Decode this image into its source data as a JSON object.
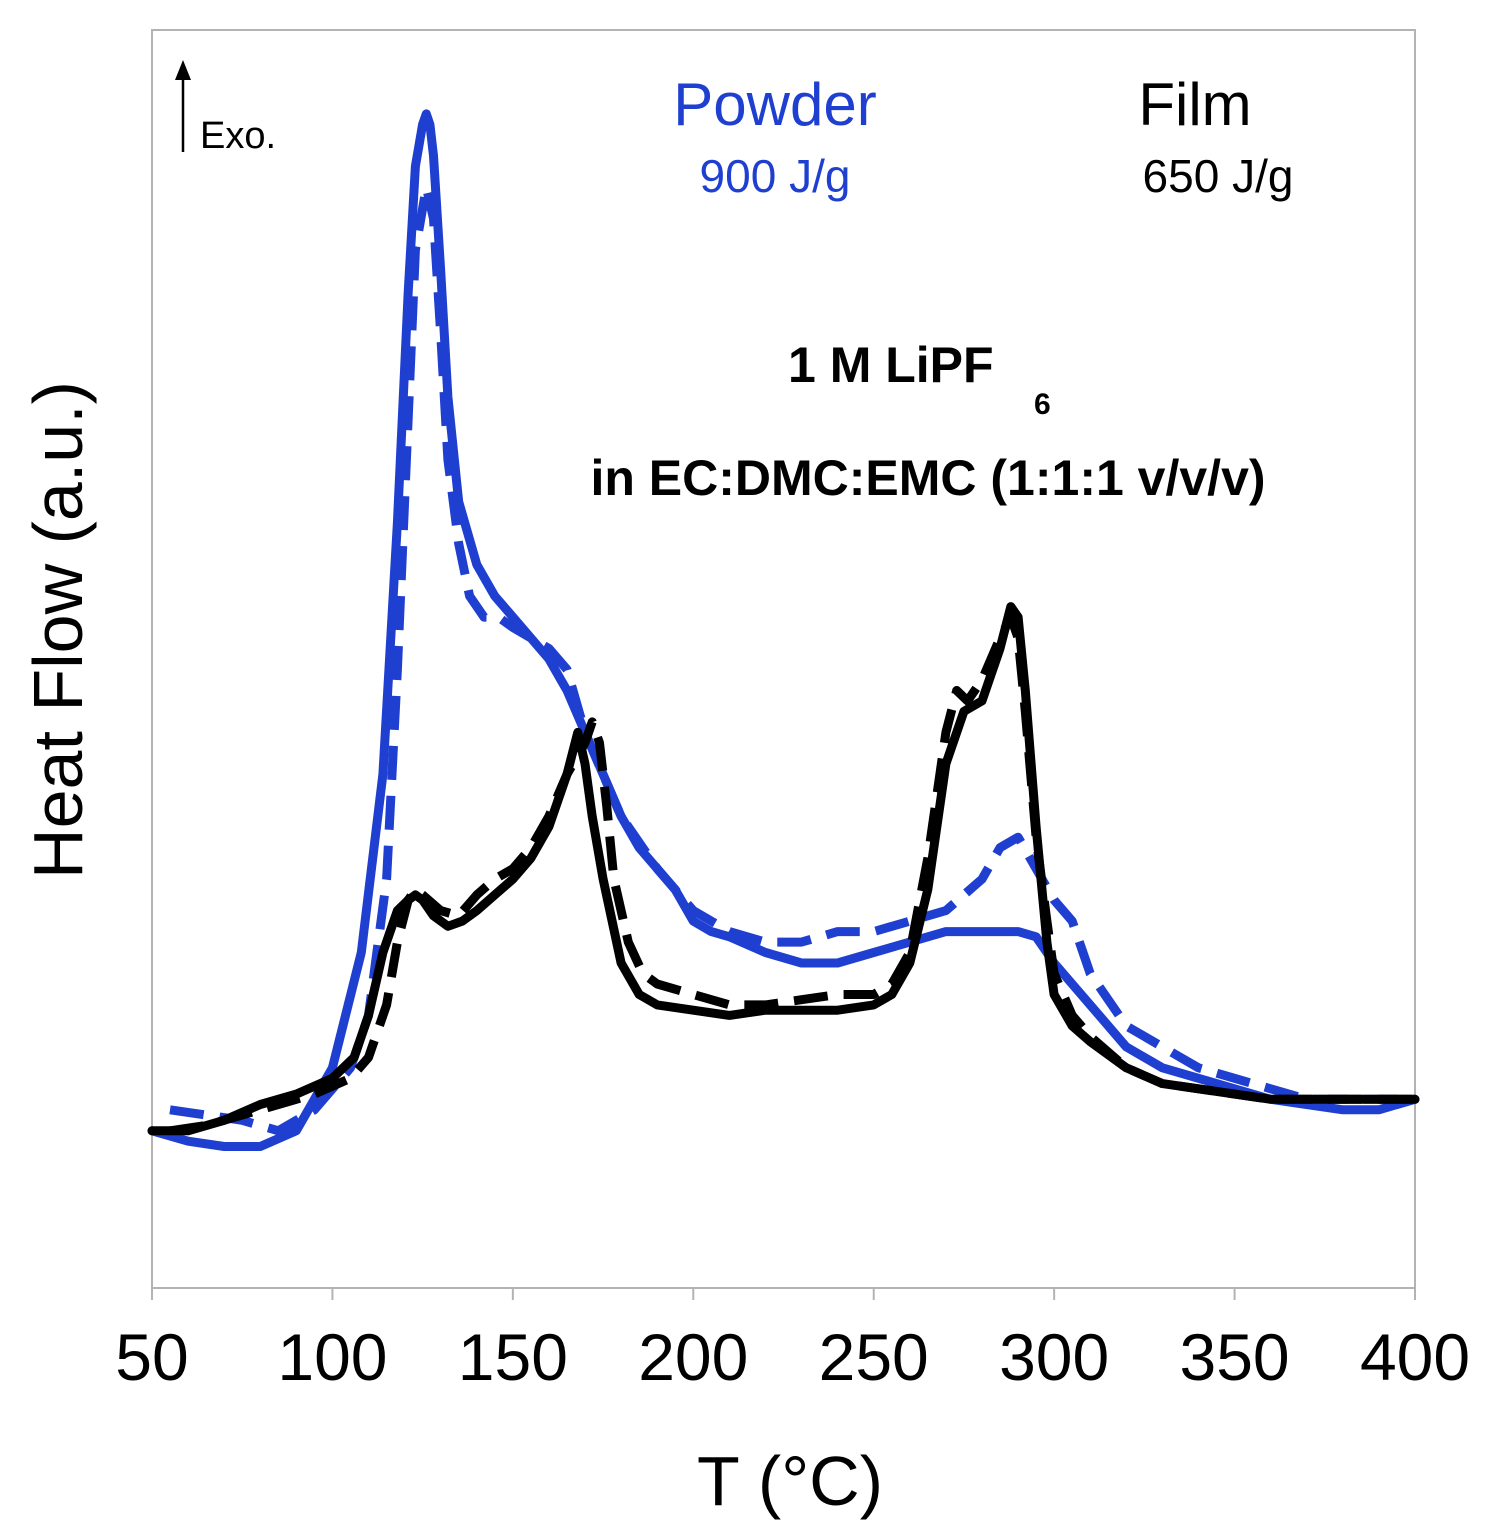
{
  "chart_data": {
    "type": "line",
    "title": "",
    "xlabel": "T (°C)",
    "ylabel": "Heat Flow (a.u.)",
    "xlim": [
      50,
      400
    ],
    "ylim": [
      -0.15,
      1.05
    ],
    "xticks": [
      "50",
      "100",
      "150",
      "200",
      "250",
      "300",
      "350",
      "400"
    ],
    "exo_label": "Exo.",
    "annotations": {
      "powder_title": "Powder",
      "powder_value": "900 J/g",
      "film_title": "Film",
      "film_value": "650 J/g",
      "electrolyte_main": "1 M LiPF",
      "electrolyte_sub": "6",
      "solvent": "in EC:DMC:EMC (1:1:1 v/v/v)"
    },
    "colors": {
      "powder": "#1f3fd1",
      "film": "#000000"
    },
    "series": [
      {
        "name": "Powder (solid)",
        "color": "#1f3fd1",
        "style": "solid",
        "x": [
          50,
          60,
          70,
          80,
          90,
          100,
          108,
          114,
          118,
          121,
          123,
          125,
          126,
          127,
          128,
          130,
          132,
          135,
          140,
          145,
          150,
          155,
          160,
          165,
          170,
          175,
          180,
          185,
          190,
          195,
          200,
          205,
          210,
          220,
          230,
          240,
          250,
          260,
          270,
          280,
          285,
          290,
          295,
          300,
          310,
          320,
          330,
          340,
          350,
          360,
          370,
          380,
          390,
          400
        ],
        "y": [
          0.0,
          -0.01,
          -0.015,
          -0.015,
          0.0,
          0.06,
          0.17,
          0.34,
          0.58,
          0.8,
          0.92,
          0.96,
          0.97,
          0.96,
          0.93,
          0.82,
          0.7,
          0.6,
          0.54,
          0.51,
          0.49,
          0.47,
          0.45,
          0.42,
          0.38,
          0.34,
          0.3,
          0.27,
          0.25,
          0.23,
          0.2,
          0.19,
          0.185,
          0.17,
          0.16,
          0.16,
          0.17,
          0.18,
          0.19,
          0.19,
          0.19,
          0.19,
          0.185,
          0.16,
          0.12,
          0.08,
          0.06,
          0.05,
          0.04,
          0.03,
          0.025,
          0.02,
          0.02,
          0.03
        ]
      },
      {
        "name": "Powder (dashed)",
        "color": "#1f3fd1",
        "style": "dashed",
        "x": [
          55,
          65,
          75,
          85,
          95,
          105,
          110,
          115,
          118,
          121,
          123,
          126,
          128,
          130,
          132,
          135,
          138,
          142,
          146,
          150,
          155,
          160,
          165,
          170,
          180,
          190,
          200,
          210,
          220,
          230,
          240,
          250,
          260,
          270,
          280,
          285,
          290,
          295,
          300,
          305,
          310,
          320,
          330,
          340,
          350,
          360,
          370,
          380,
          390,
          400
        ],
        "y": [
          0.02,
          0.015,
          0.01,
          0.0,
          0.02,
          0.06,
          0.11,
          0.24,
          0.44,
          0.68,
          0.84,
          0.9,
          0.87,
          0.76,
          0.64,
          0.56,
          0.51,
          0.49,
          0.49,
          0.48,
          0.47,
          0.46,
          0.44,
          0.38,
          0.3,
          0.25,
          0.21,
          0.19,
          0.18,
          0.18,
          0.19,
          0.19,
          0.2,
          0.21,
          0.24,
          0.27,
          0.28,
          0.25,
          0.22,
          0.2,
          0.15,
          0.1,
          0.08,
          0.06,
          0.05,
          0.04,
          0.03,
          0.03,
          0.03,
          0.03
        ]
      },
      {
        "name": "Film (solid)",
        "color": "#000000",
        "style": "solid",
        "x": [
          50,
          60,
          70,
          80,
          90,
          100,
          106,
          110,
          114,
          118,
          121,
          123,
          125,
          128,
          132,
          136,
          140,
          145,
          150,
          155,
          160,
          165,
          168,
          170,
          172,
          175,
          180,
          185,
          190,
          200,
          210,
          220,
          230,
          240,
          250,
          255,
          260,
          265,
          270,
          275,
          280,
          285,
          288,
          290,
          292,
          295,
          298,
          300,
          305,
          310,
          320,
          330,
          340,
          350,
          360,
          370,
          380,
          390,
          400
        ],
        "y": [
          0.0,
          0.0,
          0.01,
          0.025,
          0.035,
          0.05,
          0.07,
          0.11,
          0.17,
          0.21,
          0.22,
          0.225,
          0.22,
          0.205,
          0.195,
          0.2,
          0.21,
          0.225,
          0.24,
          0.26,
          0.29,
          0.34,
          0.38,
          0.35,
          0.3,
          0.24,
          0.16,
          0.13,
          0.12,
          0.115,
          0.11,
          0.115,
          0.115,
          0.115,
          0.12,
          0.13,
          0.16,
          0.23,
          0.35,
          0.4,
          0.41,
          0.46,
          0.5,
          0.49,
          0.42,
          0.29,
          0.18,
          0.13,
          0.1,
          0.085,
          0.06,
          0.045,
          0.04,
          0.035,
          0.03,
          0.03,
          0.03,
          0.03,
          0.03
        ]
      },
      {
        "name": "Film (dashed)",
        "color": "#000000",
        "style": "dashed",
        "x": [
          55,
          65,
          75,
          85,
          95,
          105,
          110,
          115,
          118,
          121,
          123,
          125,
          130,
          135,
          140,
          145,
          150,
          155,
          160,
          165,
          170,
          172,
          174,
          176,
          178,
          182,
          186,
          190,
          200,
          210,
          220,
          230,
          240,
          250,
          255,
          260,
          265,
          270,
          273,
          276,
          280,
          285,
          288,
          290,
          292,
          295,
          298,
          300,
          305,
          310,
          320,
          330,
          340,
          350,
          360,
          370,
          380,
          390,
          400
        ],
        "y": [
          0.0,
          0.005,
          0.015,
          0.025,
          0.035,
          0.05,
          0.07,
          0.12,
          0.18,
          0.22,
          0.23,
          0.225,
          0.21,
          0.205,
          0.225,
          0.24,
          0.25,
          0.27,
          0.3,
          0.34,
          0.37,
          0.39,
          0.37,
          0.31,
          0.24,
          0.18,
          0.15,
          0.14,
          0.13,
          0.12,
          0.12,
          0.125,
          0.13,
          0.13,
          0.14,
          0.17,
          0.26,
          0.38,
          0.42,
          0.41,
          0.43,
          0.47,
          0.49,
          0.47,
          0.4,
          0.28,
          0.2,
          0.15,
          0.11,
          0.09,
          0.06,
          0.045,
          0.04,
          0.035,
          0.03,
          0.03,
          0.03,
          0.03,
          0.03
        ]
      }
    ]
  }
}
